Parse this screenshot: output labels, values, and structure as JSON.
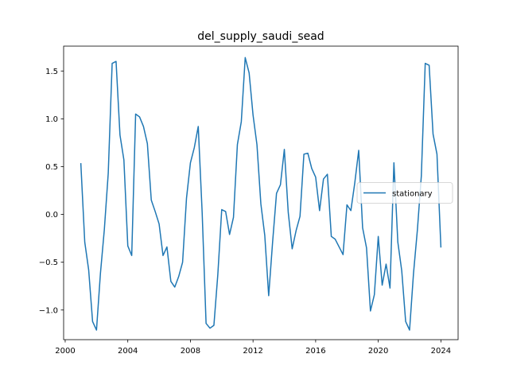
{
  "chart_data": {
    "type": "line",
    "title": "del_supply_saudi_sead",
    "xlabel": "",
    "ylabel": "",
    "xlim": [
      1999.9,
      2025.1
    ],
    "ylim": [
      -1.31,
      1.76
    ],
    "xticks": [
      2000,
      2004,
      2008,
      2012,
      2016,
      2020,
      2024
    ],
    "xtick_labels": [
      "2000",
      "2004",
      "2008",
      "2012",
      "2016",
      "2020",
      "2024"
    ],
    "yticks": [
      -1.0,
      -0.5,
      0.0,
      0.5,
      1.0,
      1.5
    ],
    "ytick_labels": [
      "−1.0",
      "−0.5",
      "0.0",
      "0.5",
      "1.0",
      "1.5"
    ],
    "grid": false,
    "legend": {
      "position": "center-right",
      "entries": [
        "stationary"
      ]
    },
    "series": [
      {
        "name": "stationary",
        "color": "#1f77b4",
        "x": [
          2001.0,
          2001.25,
          2001.5,
          2001.75,
          2002.0,
          2002.25,
          2002.5,
          2002.75,
          2003.0,
          2003.25,
          2003.5,
          2003.75,
          2004.0,
          2004.25,
          2004.5,
          2004.75,
          2005.0,
          2005.25,
          2005.5,
          2005.75,
          2006.0,
          2006.25,
          2006.5,
          2006.75,
          2007.0,
          2007.25,
          2007.5,
          2007.75,
          2008.0,
          2008.25,
          2008.5,
          2008.75,
          2009.0,
          2009.25,
          2009.5,
          2009.75,
          2010.0,
          2010.25,
          2010.5,
          2010.75,
          2011.0,
          2011.25,
          2011.5,
          2011.75,
          2012.0,
          2012.25,
          2012.5,
          2012.75,
          2013.0,
          2013.25,
          2013.5,
          2013.75,
          2014.0,
          2014.25,
          2014.5,
          2014.75,
          2015.0,
          2015.25,
          2015.5,
          2015.75,
          2016.0,
          2016.25,
          2016.5,
          2016.75,
          2017.0,
          2017.25,
          2017.5,
          2017.75,
          2018.0,
          2018.25,
          2018.5,
          2018.75,
          2019.0,
          2019.25,
          2019.5,
          2019.75,
          2020.0,
          2020.25,
          2020.5,
          2020.75,
          2021.0,
          2021.25,
          2021.5,
          2021.75,
          2022.0,
          2022.25,
          2022.5,
          2022.75,
          2023.0,
          2023.25,
          2023.5,
          2023.75,
          2024.0
        ],
        "y": [
          0.53,
          -0.29,
          -0.58,
          -1.12,
          -1.21,
          -0.62,
          -0.16,
          0.43,
          1.58,
          1.6,
          0.83,
          0.57,
          -0.33,
          -0.43,
          1.05,
          1.02,
          0.92,
          0.74,
          0.15,
          0.03,
          -0.1,
          -0.43,
          -0.34,
          -0.7,
          -0.76,
          -0.65,
          -0.5,
          0.17,
          0.54,
          0.7,
          0.92,
          0.02,
          -1.14,
          -1.19,
          -1.16,
          -0.63,
          0.05,
          0.03,
          -0.21,
          -0.03,
          0.73,
          0.97,
          1.64,
          1.48,
          1.04,
          0.73,
          0.11,
          -0.22,
          -0.85,
          -0.29,
          0.22,
          0.31,
          0.68,
          0.02,
          -0.36,
          -0.17,
          -0.02,
          0.63,
          0.64,
          0.48,
          0.39,
          0.04,
          0.37,
          0.42,
          -0.23,
          -0.26,
          -0.34,
          -0.42,
          0.1,
          0.04,
          0.33,
          0.67,
          -0.14,
          -0.35,
          -1.01,
          -0.84,
          -0.23,
          -0.74,
          -0.52,
          -0.77,
          0.54,
          -0.29,
          -0.59,
          -1.12,
          -1.21,
          -0.62,
          -0.16,
          0.4,
          1.58,
          1.56,
          0.84,
          0.63,
          -0.34
        ]
      }
    ]
  }
}
